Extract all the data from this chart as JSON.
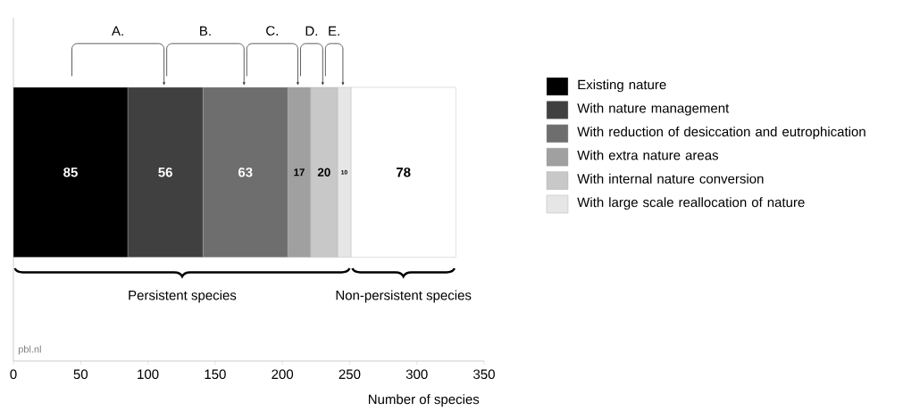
{
  "chart_data": {
    "type": "bar",
    "orientation": "horizontal",
    "stacked": true,
    "categories": [
      null
    ],
    "series": [
      {
        "name": "Existing nature",
        "color": "#000000",
        "values": [
          85
        ]
      },
      {
        "name": "With nature management",
        "color": "#404040",
        "values": [
          56
        ]
      },
      {
        "name": "With reduction of desiccation and eutrophication",
        "color": "#6e6e6e",
        "values": [
          63
        ]
      },
      {
        "name": "With extra nature areas",
        "color": "#a0a0a0",
        "values": [
          17
        ]
      },
      {
        "name": "With internal nature conversion",
        "color": "#c8c8c8",
        "values": [
          20
        ]
      },
      {
        "name": "With large scale reallocation of nature",
        "color": "#e6e6e6",
        "values": [
          10
        ]
      },
      {
        "color": "#ffffff",
        "values": [
          78
        ]
      }
    ],
    "data_labels": true,
    "legend": "right",
    "xlabel": "Number of species",
    "xlim": [
      0,
      350
    ],
    "xticks": [
      0,
      50,
      100,
      150,
      200,
      250,
      300,
      350
    ],
    "annotations": [
      "A.",
      "B.",
      "C.",
      "D.",
      "E.",
      "Persistent species",
      "Non-persistent species",
      "pbl.nl"
    ]
  }
}
